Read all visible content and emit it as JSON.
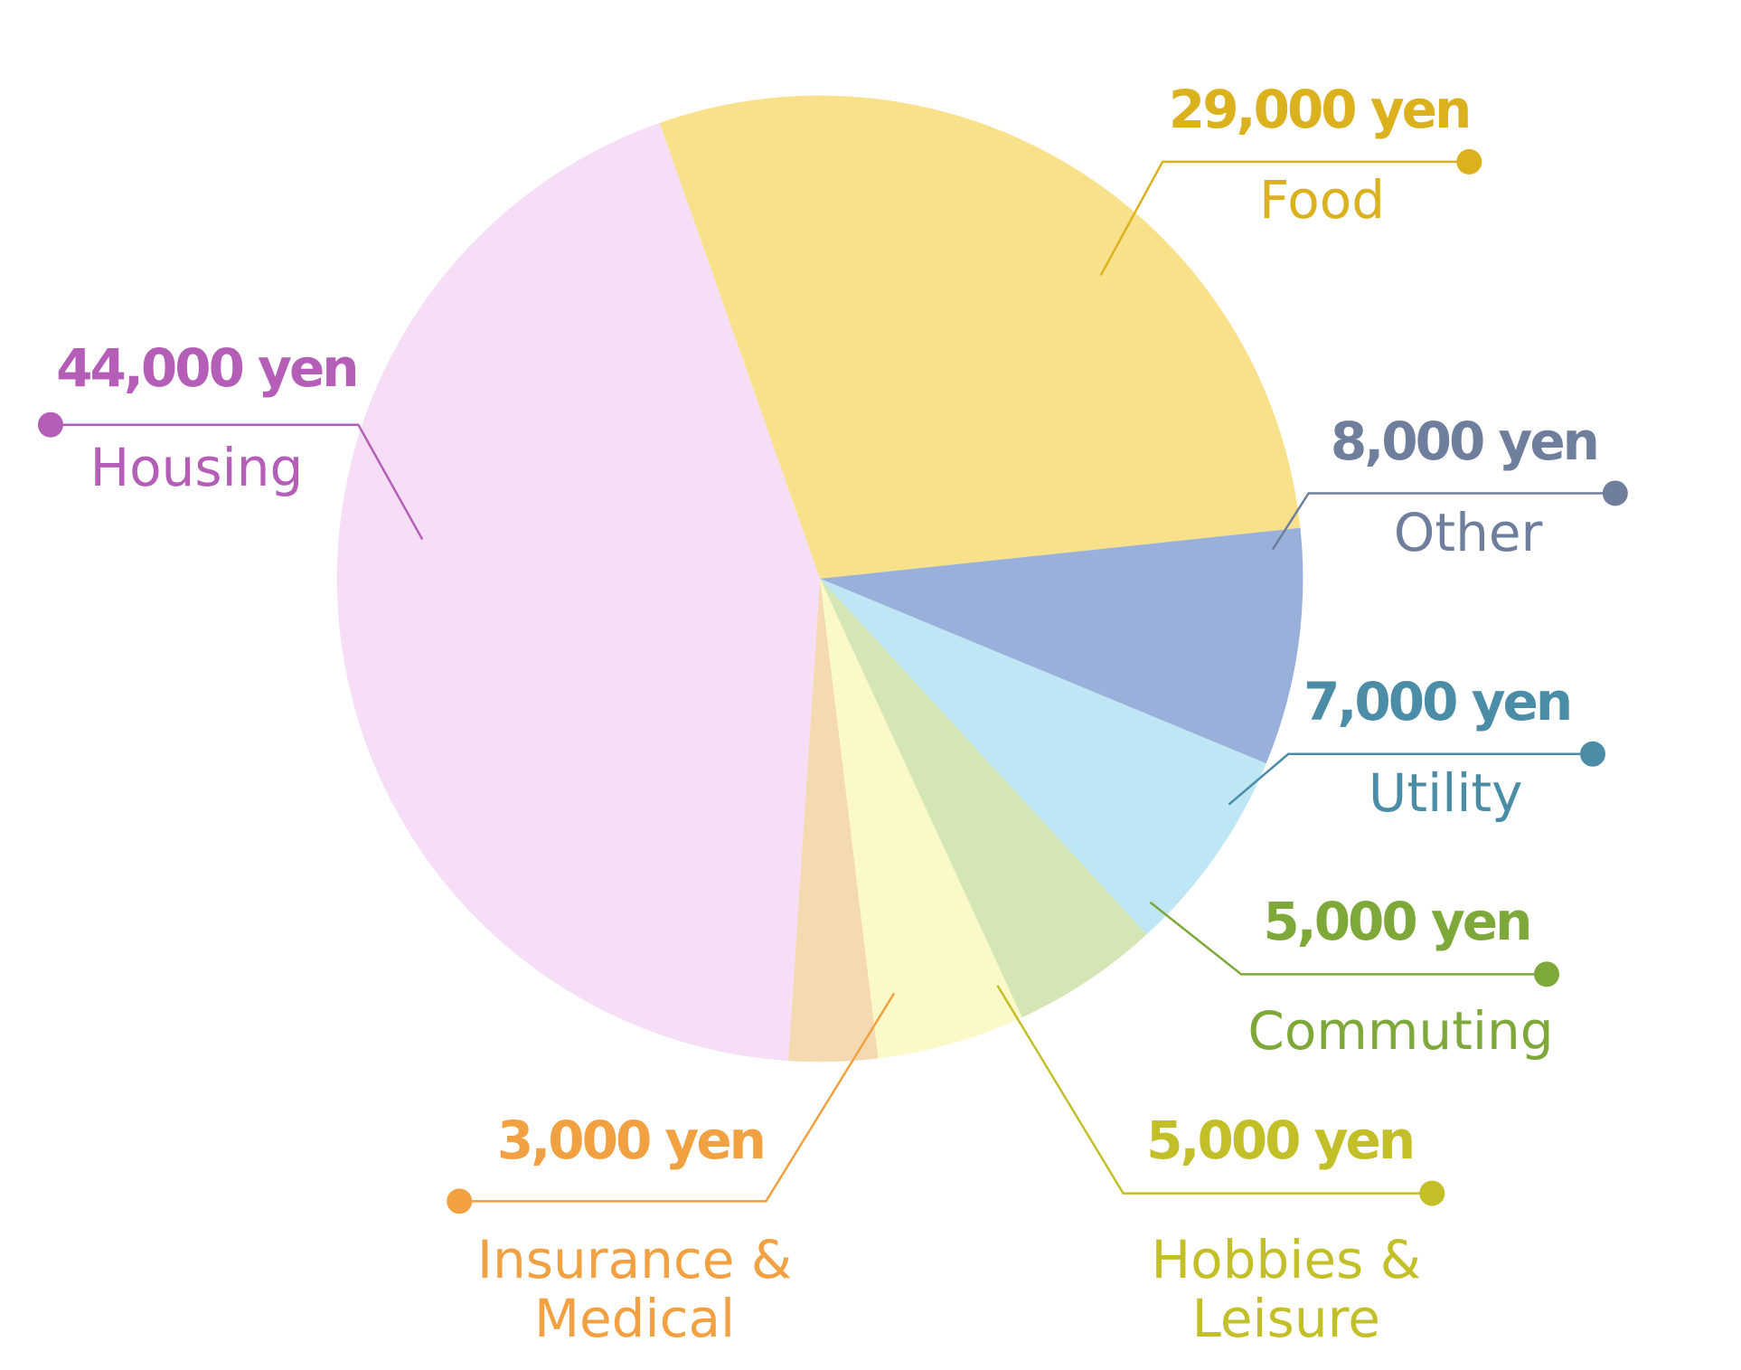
{
  "chart_data": {
    "type": "pie",
    "categories": [
      "Food",
      "Other",
      "Utility",
      "Commuting",
      "Hobbies & Leisure",
      "Insurance & Medical",
      "Housing"
    ],
    "values": [
      29000,
      8000,
      7000,
      5000,
      5000,
      3000,
      44000
    ],
    "value_labels": [
      "29,000 yen",
      "8,000 yen",
      "7,000 yen",
      "5,000 yen",
      "5,000 yen",
      "3,000 yen",
      "44,000 yen"
    ],
    "colors": [
      "#f9e18c",
      "#99b1da",
      "#bfe6f4",
      "#d5e6b6",
      "#fbf9c7",
      "#f4d9b1",
      "#f6def6"
    ],
    "label_colors": [
      "#dbb11d",
      "#6e7e9c",
      "#4b8ca6",
      "#7ea83a",
      "#c3bf28",
      "#f1a141",
      "#b45eb8"
    ]
  }
}
